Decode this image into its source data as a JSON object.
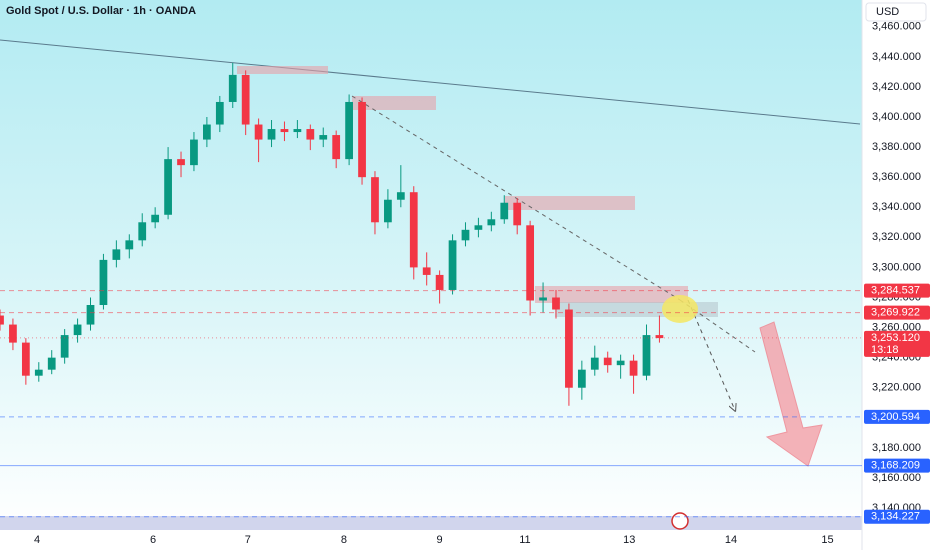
{
  "chart_data": {
    "type": "candlestick",
    "title": "Gold Spot / U.S. Dollar · 1h · OANDA",
    "currency": "USD",
    "up_color": "#089981",
    "down_color": "#f23645",
    "grid": false,
    "xlim": [
      0,
      200
    ],
    "ylim": [
      3125.4,
      3477.8
    ],
    "xticks": [
      {
        "value": 8.6,
        "label": "4"
      },
      {
        "value": 35.5,
        "label": "6"
      },
      {
        "value": 57.5,
        "label": "7"
      },
      {
        "value": 79.8,
        "label": "8"
      },
      {
        "value": 102,
        "label": "9"
      },
      {
        "value": 121.8,
        "label": "11"
      },
      {
        "value": 146,
        "label": "13"
      },
      {
        "value": 169.6,
        "label": "14"
      },
      {
        "value": 192,
        "label": "15"
      }
    ],
    "yticks": [
      {
        "value": 3140,
        "label": "3,140.000"
      },
      {
        "value": 3160,
        "label": "3,160.000"
      },
      {
        "value": 3180,
        "label": "3,180.000"
      },
      {
        "value": 3200,
        "label": "3,200.000"
      },
      {
        "value": 3220,
        "label": "3,220.000"
      },
      {
        "value": 3240,
        "label": "3,240.000"
      },
      {
        "value": 3260,
        "label": "3,260.000"
      },
      {
        "value": 3280,
        "label": "3,280.000"
      },
      {
        "value": 3300,
        "label": "3,300.000"
      },
      {
        "value": 3320,
        "label": "3,320.000"
      },
      {
        "value": 3340,
        "label": "3,340.000"
      },
      {
        "value": 3360,
        "label": "3,360.000"
      },
      {
        "value": 3380,
        "label": "3,380.000"
      },
      {
        "value": 3400,
        "label": "3,400.000"
      },
      {
        "value": 3420,
        "label": "3,420.000"
      },
      {
        "value": 3440,
        "label": "3,440.000"
      },
      {
        "value": 3460,
        "label": "3,460.000"
      }
    ],
    "x": [
      0,
      3,
      6,
      9,
      12,
      15,
      18,
      21,
      24,
      27,
      30,
      33,
      36,
      39,
      42,
      45,
      48,
      51,
      54,
      57,
      60,
      63,
      66,
      69,
      72,
      75,
      78,
      81,
      84,
      87,
      90,
      93,
      96,
      99,
      102,
      105,
      108,
      111,
      114,
      117,
      120,
      123,
      126,
      129,
      132,
      135,
      138,
      141,
      144,
      147,
      150,
      153
    ],
    "open": [
      3268,
      3262,
      3250,
      3228,
      3232,
      3240,
      3255,
      3262,
      3275,
      3305,
      3312,
      3318,
      3330,
      3335,
      3372,
      3368,
      3385,
      3395,
      3410,
      3428,
      3395,
      3385,
      3392,
      3390,
      3392,
      3385,
      3388,
      3372,
      3410,
      3360,
      3330,
      3345,
      3350,
      3300,
      3295,
      3285,
      3318,
      3325,
      3328,
      3332,
      3343,
      3328,
      3278,
      3280,
      3272,
      3220,
      3232,
      3240,
      3235,
      3238,
      3228,
      3255
    ],
    "high": [
      3272,
      3266,
      3253,
      3237,
      3245,
      3259,
      3266,
      3280,
      3309,
      3318,
      3322,
      3336,
      3340,
      3380,
      3377,
      3390,
      3400,
      3414,
      3436,
      3431,
      3399,
      3398,
      3397,
      3398,
      3395,
      3393,
      3391,
      3415,
      3413,
      3364,
      3352,
      3368,
      3354,
      3310,
      3298,
      3322,
      3330,
      3333,
      3337,
      3348,
      3346,
      3331,
      3290,
      3285,
      3276,
      3238,
      3248,
      3244,
      3242,
      3242,
      3262,
      3268
    ],
    "low": [
      3258,
      3245,
      3222,
      3224,
      3229,
      3236,
      3250,
      3258,
      3272,
      3300,
      3306,
      3314,
      3326,
      3332,
      3360,
      3364,
      3380,
      3390,
      3406,
      3388,
      3370,
      3380,
      3384,
      3386,
      3378,
      3380,
      3366,
      3368,
      3355,
      3322,
      3326,
      3340,
      3292,
      3288,
      3276,
      3282,
      3314,
      3320,
      3324,
      3329,
      3322,
      3268,
      3270,
      3266,
      3208,
      3212,
      3228,
      3230,
      3226,
      3216,
      3225,
      3250
    ],
    "close": [
      3262,
      3250,
      3228,
      3232,
      3240,
      3255,
      3262,
      3275,
      3305,
      3312,
      3318,
      3330,
      3335,
      3372,
      3368,
      3385,
      3395,
      3410,
      3428,
      3395,
      3385,
      3392,
      3390,
      3392,
      3385,
      3388,
      3372,
      3410,
      3360,
      3330,
      3345,
      3350,
      3300,
      3295,
      3285,
      3318,
      3325,
      3328,
      3332,
      3343,
      3328,
      3278,
      3280,
      3272,
      3220,
      3232,
      3240,
      3235,
      3238,
      3228,
      3255,
      3253
    ],
    "levels": [
      {
        "value": 3284.537,
        "label": "3,284.537",
        "color": "#f23645",
        "style": "dashed"
      },
      {
        "value": 3269.922,
        "label": "3,269.922",
        "color": "#f23645",
        "style": "dashed"
      },
      {
        "value": 3253.12,
        "label": "3,253.120",
        "color": "#f23645",
        "style": "dotted",
        "countdown": "13:18"
      },
      {
        "value": 3200.594,
        "label": "3,200.594",
        "color": "#2962ff",
        "style": "dashed"
      },
      {
        "value": 3168.209,
        "label": "3,168.209",
        "color": "#2962ff",
        "style": "solid"
      },
      {
        "value": 3134.227,
        "label": "3,134.227",
        "color": "#2962ff",
        "style": "dashed"
      }
    ]
  }
}
